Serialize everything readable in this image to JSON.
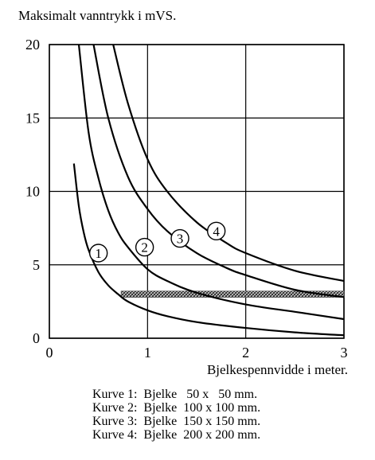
{
  "chart_data": {
    "type": "line",
    "ylabel": "Maksimalt vanntrykk i mVS.",
    "xlabel": "Bjelkespennvidde i meter.",
    "xlim": [
      0,
      3
    ],
    "ylim": [
      0,
      20
    ],
    "x_ticks": [
      "0",
      "1",
      "2",
      "3"
    ],
    "y_ticks": [
      "0",
      "5",
      "10",
      "15",
      "20"
    ],
    "grid": true,
    "series": [
      {
        "name": "1",
        "x": [
          0.25,
          0.3,
          0.35,
          0.4,
          0.5,
          0.6,
          0.7,
          0.8,
          1.0,
          1.2,
          1.5,
          2.0,
          2.5,
          3.0
        ],
        "y": [
          11.9,
          9.0,
          7.2,
          6.0,
          4.5,
          3.6,
          3.0,
          2.5,
          1.9,
          1.5,
          1.1,
          0.7,
          0.4,
          0.2
        ]
      },
      {
        "name": "2",
        "x": [
          0.3,
          0.4,
          0.5,
          0.6,
          0.7,
          0.8,
          1.0,
          1.2,
          1.5,
          2.0,
          2.5,
          3.0
        ],
        "y": [
          20.0,
          14.0,
          10.9,
          8.7,
          7.2,
          6.2,
          4.7,
          3.9,
          3.1,
          2.3,
          1.8,
          1.3
        ]
      },
      {
        "name": "3",
        "x": [
          0.45,
          0.6,
          0.8,
          1.0,
          1.2,
          1.5,
          1.8,
          2.0,
          2.5,
          3.0
        ],
        "y": [
          20.0,
          15.0,
          11.0,
          8.8,
          7.3,
          5.8,
          4.8,
          4.3,
          3.3,
          2.8
        ]
      },
      {
        "name": "4",
        "x": [
          0.65,
          0.8,
          1.0,
          1.2,
          1.5,
          1.8,
          2.0,
          2.5,
          3.0
        ],
        "y": [
          20.0,
          16.0,
          12.2,
          10.0,
          7.9,
          6.5,
          5.8,
          4.6,
          3.9
        ]
      }
    ],
    "curve_labels": [
      {
        "text": "1",
        "x": 0.5,
        "y": 5.8
      },
      {
        "text": "2",
        "x": 0.97,
        "y": 6.2
      },
      {
        "text": "3",
        "x": 1.33,
        "y": 6.8
      },
      {
        "text": "4",
        "x": 1.7,
        "y": 7.3
      }
    ],
    "hatched_band": {
      "x": [
        0.73,
        3.0
      ],
      "y": 3.0
    }
  },
  "legend": [
    "Kurve 1:  Bjelke   50 x   50 mm.",
    "Kurve 2:  Bjelke  100 x 100 mm.",
    "Kurve 3:  Bjelke  150 x 150 mm.",
    "Kurve 4:  Bjelke  200 x 200 mm."
  ],
  "colors": {
    "ink": "#000000",
    "band": "#555555"
  }
}
